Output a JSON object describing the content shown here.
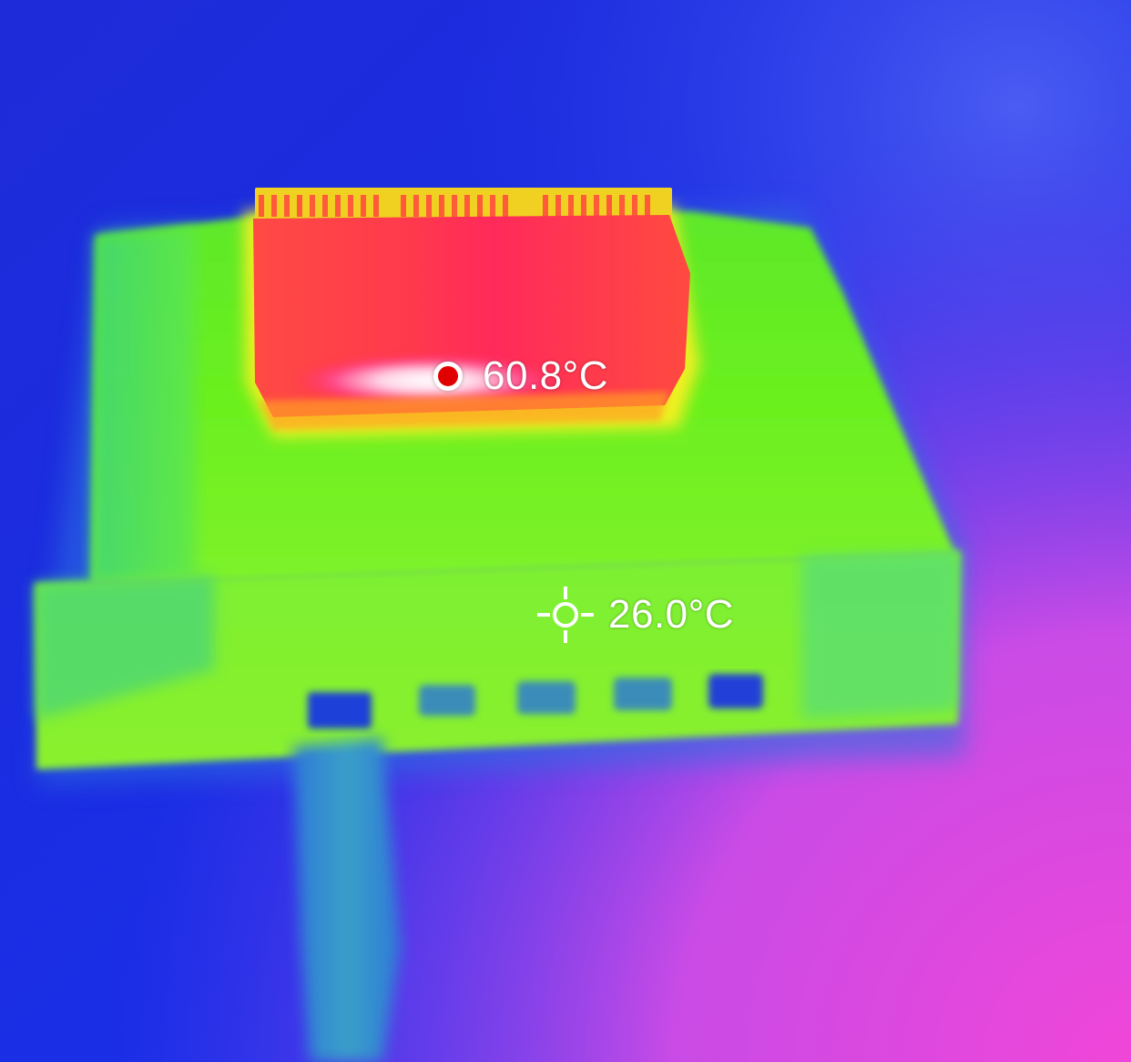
{
  "readings": {
    "max_temperature": "60.8°C",
    "center_temperature": "26.0°C"
  },
  "colors": {
    "background": "#1a2fe0",
    "device_body": "#66f01e",
    "heatsink": "#ff3a4a",
    "hotspot": "#ffffff",
    "marker_dot": "#e00000",
    "label_text": "#ffffff"
  },
  "icons": {
    "max_marker": "red-dot-icon",
    "center_marker": "crosshair-icon"
  }
}
